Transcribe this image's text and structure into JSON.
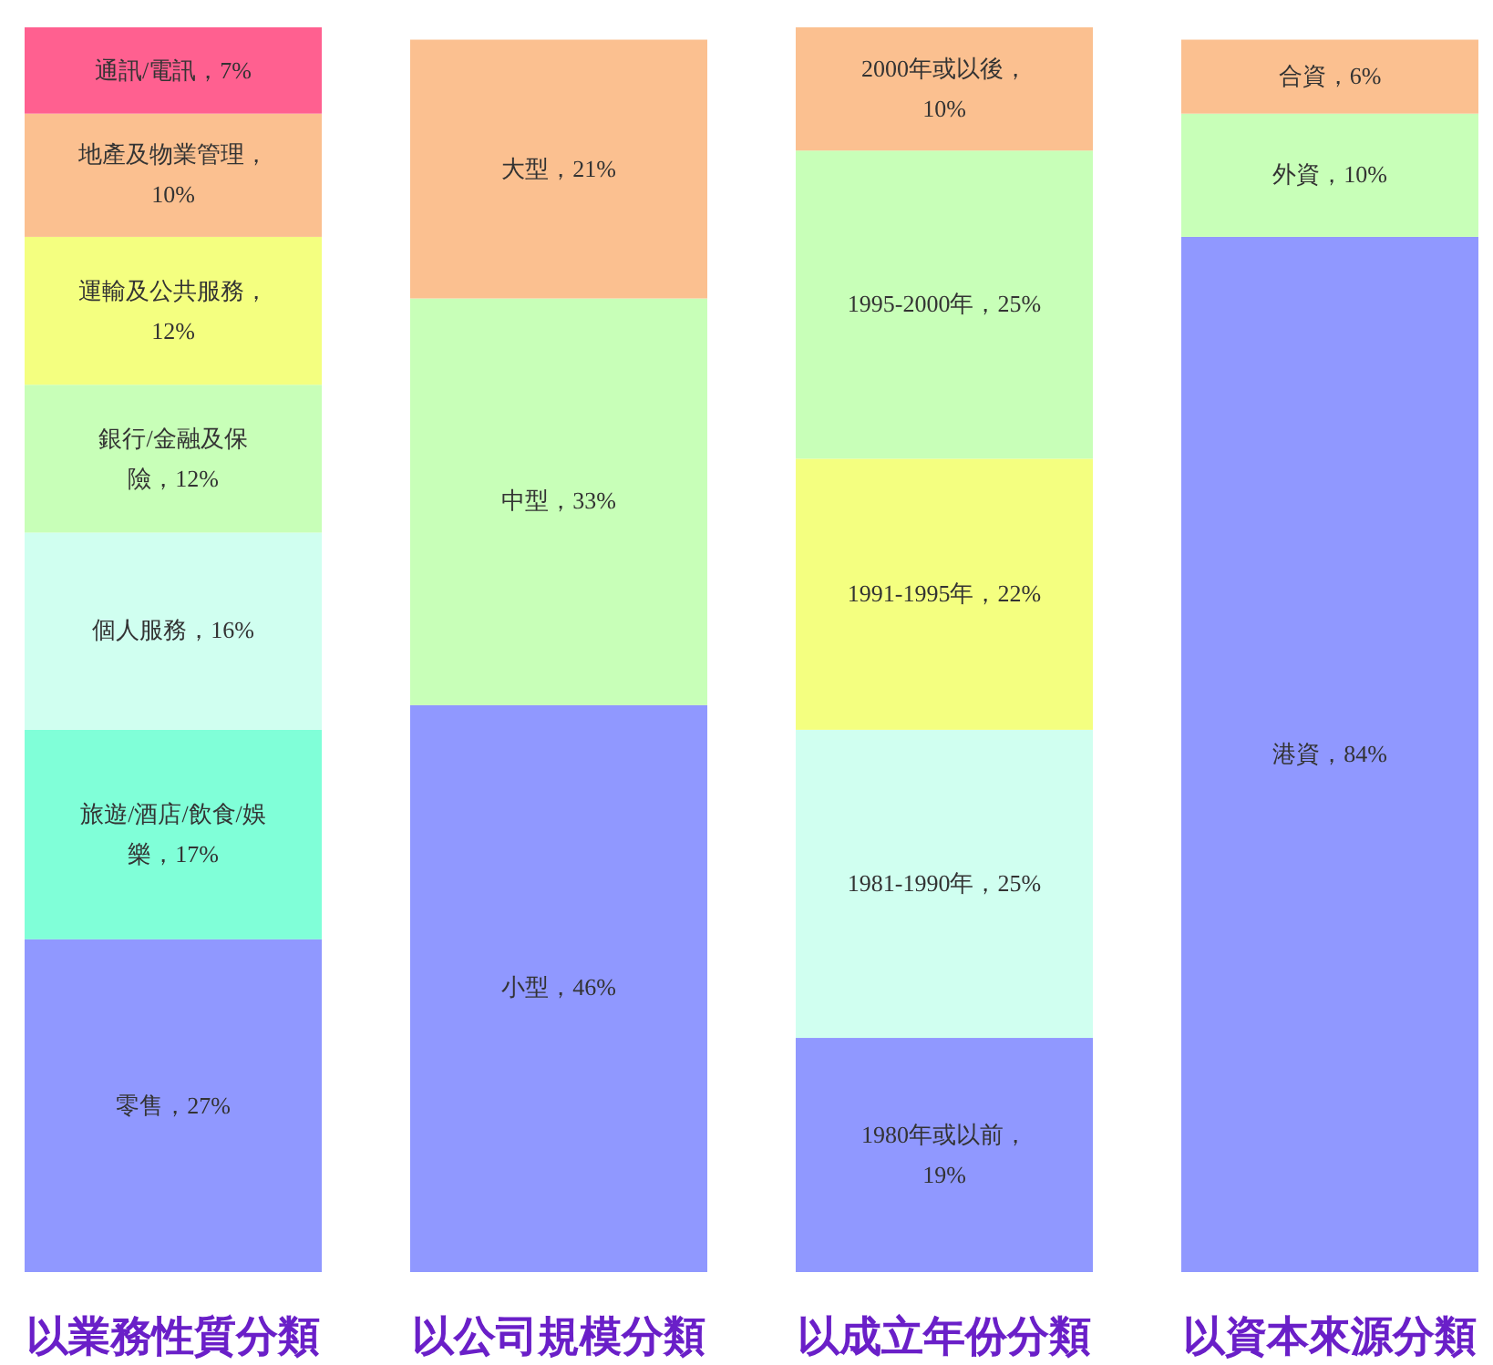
{
  "chart_data": {
    "type": "bar",
    "stacked": true,
    "data_labels": true,
    "categories": [
      "以業務性質分類",
      "以公司規模分類",
      "以成立年份分類",
      "以資本來源分類"
    ],
    "series": [
      {
        "values": [
          27,
          46,
          19,
          84
        ],
        "colors": [
          "#9098ff",
          "#9098ff",
          "#9098ff",
          "#9098ff"
        ],
        "value_labels": [
          "零售，27%",
          "小型，46%",
          "1980年或以前，19%",
          "港資，84%"
        ]
      },
      {
        "values": [
          17,
          33,
          25,
          10
        ],
        "colors": [
          "#80ffd8",
          "#c8ffb8",
          "#d0fff0",
          "#c8ffb8"
        ],
        "value_labels": [
          "旅遊/酒店/飲食/娛樂，17%",
          "中型，33%",
          "1981-1990年，25%",
          "外資，10%"
        ]
      },
      {
        "values": [
          16,
          21,
          22,
          6
        ],
        "colors": [
          "#d0fff0",
          "#fbc090",
          "#f4ff80",
          "#fbc090"
        ],
        "value_labels": [
          "個人服務，16%",
          "大型，21%",
          "1991-1995年，22%",
          "合資，6%"
        ]
      },
      {
        "values": [
          12,
          null,
          25,
          null
        ],
        "colors": [
          "#c8ffb8",
          null,
          "#c8ffb8",
          null
        ],
        "value_labels": [
          "銀行/金融及保險，12%",
          null,
          "1995-2000年，25%",
          null
        ]
      },
      {
        "values": [
          12,
          null,
          10,
          null
        ],
        "colors": [
          "#f4ff80",
          null,
          "#fbc090",
          null
        ],
        "value_labels": [
          "運輸及公共服務，12%",
          null,
          "2000年或以後，10%",
          null
        ]
      },
      {
        "values": [
          10,
          null,
          null,
          null
        ],
        "colors": [
          "#fbc090",
          null,
          null,
          null
        ],
        "value_labels": [
          "地產及物業管理，10%",
          null,
          null,
          null
        ]
      },
      {
        "values": [
          7,
          null,
          null,
          null
        ],
        "colors": [
          "#ff6090",
          null,
          null,
          null
        ],
        "value_labels": [
          "通訊/電訊，7%",
          null,
          null,
          null
        ]
      }
    ]
  }
}
